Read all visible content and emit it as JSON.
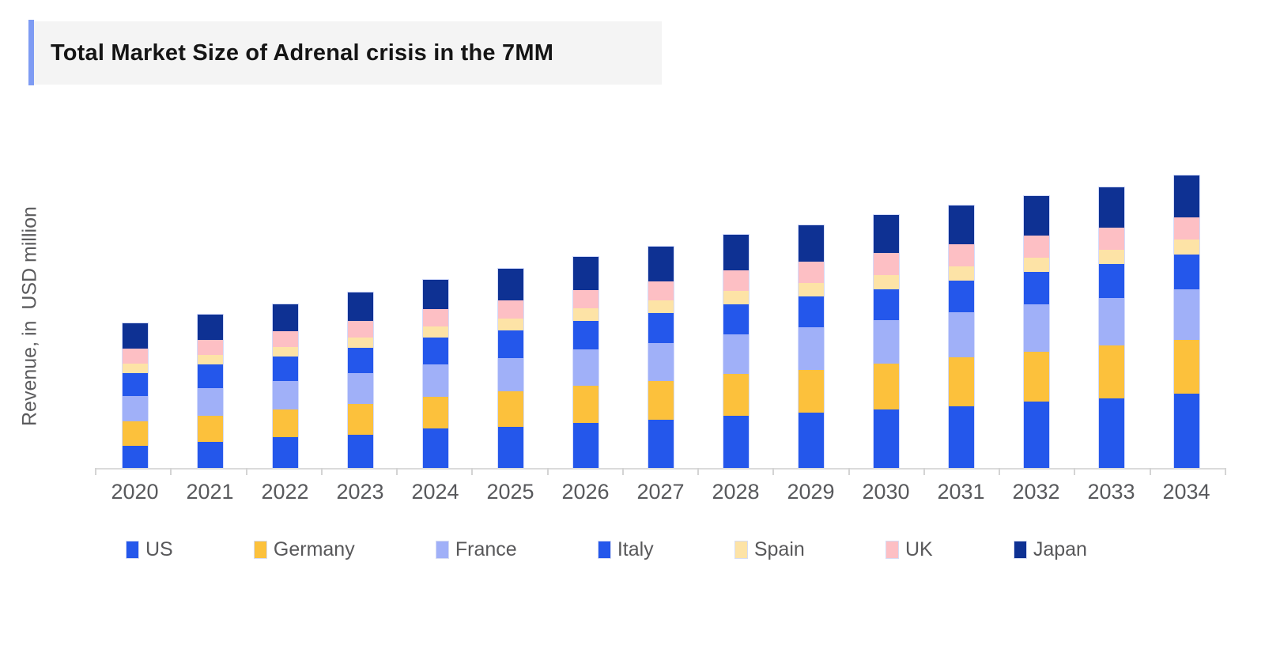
{
  "title": {
    "text": "Total Market Size of Adrenal crisis in the 7MM"
  },
  "chart_data": {
    "type": "bar",
    "stacked": true,
    "title": "Total Market Size of Adrenal crisis in the 7MM",
    "xlabel": "",
    "ylabel": "Revenue, in  USD million",
    "categories": [
      "2020",
      "2021",
      "2022",
      "2023",
      "2024",
      "2025",
      "2026",
      "2027",
      "2028",
      "2029",
      "2030",
      "2031",
      "2032",
      "2033",
      "2034"
    ],
    "series": [
      {
        "name": "US",
        "color": "#2457EB",
        "values": [
          28,
          33,
          39,
          42,
          50,
          52,
          57,
          61,
          66,
          70,
          74,
          78,
          84,
          88,
          94
        ]
      },
      {
        "name": "Germany",
        "color": "#FCC13C",
        "values": [
          31,
          33,
          35,
          39,
          40,
          45,
          47,
          49,
          53,
          54,
          58,
          62,
          63,
          67,
          68
        ]
      },
      {
        "name": "France",
        "color": "#A0B0F8",
        "values": [
          32,
          35,
          36,
          39,
          41,
          42,
          46,
          48,
          50,
          54,
          55,
          57,
          60,
          60,
          64
        ]
      },
      {
        "name": "Italy",
        "color": "#2457EB",
        "values": [
          29,
          30,
          31,
          32,
          34,
          35,
          36,
          38,
          38,
          39,
          39,
          40,
          41,
          43,
          44
        ]
      },
      {
        "name": "Spain",
        "color": "#FDE3A6",
        "values": [
          12,
          12,
          12,
          13,
          14,
          15,
          16,
          16,
          17,
          17,
          18,
          18,
          18,
          18,
          19
        ]
      },
      {
        "name": "UK",
        "color": "#FDBFC4",
        "values": [
          19,
          19,
          20,
          21,
          22,
          23,
          23,
          24,
          26,
          27,
          28,
          28,
          28,
          28,
          28
        ]
      },
      {
        "name": "Japan",
        "color": "#0E3193",
        "values": [
          32,
          32,
          34,
          36,
          37,
          40,
          42,
          44,
          45,
          46,
          48,
          49,
          50,
          51,
          53
        ]
      }
    ],
    "totals_estimated": [
      183,
      194,
      207,
      222,
      238,
      252,
      267,
      280,
      295,
      307,
      320,
      332,
      344,
      355,
      370
    ],
    "ylim": [
      0,
      400
    ],
    "y_tick_labels_shown": false,
    "value_note": "no numeric axis ticks or data labels shown; values estimated proportionally from bar heights",
    "grid": false,
    "legend_position": "bottom",
    "legend_order": [
      "US",
      "Germany",
      "France",
      "Italy",
      "Spain",
      "UK",
      "Japan"
    ]
  },
  "style_colors": {
    "title_accent": "#7E9BF3",
    "title_background": "#F4F4F4",
    "axis_line": "#DBDBDB",
    "label_gray": "#58595C"
  }
}
